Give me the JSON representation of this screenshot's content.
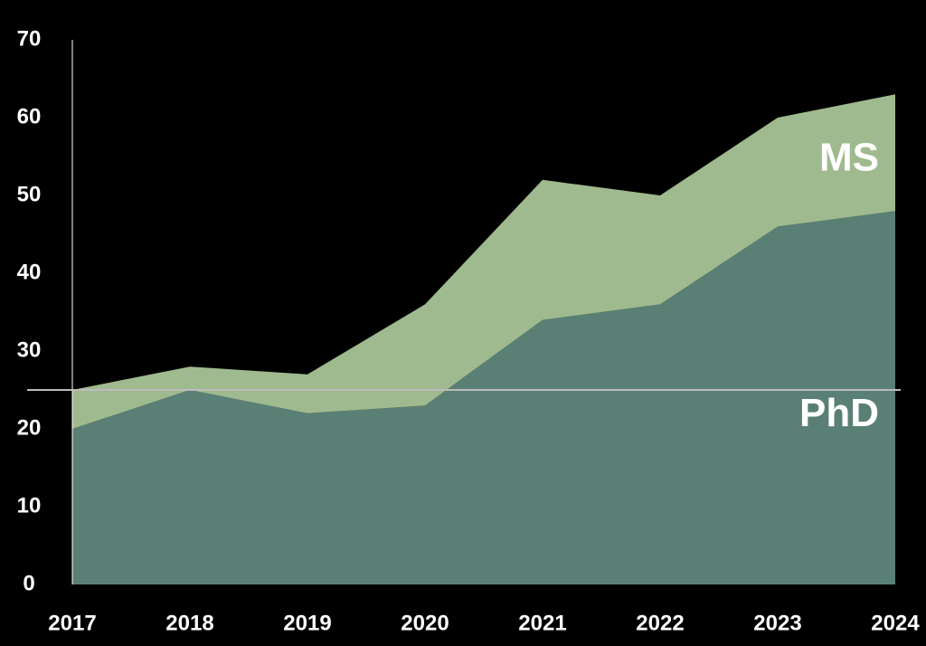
{
  "chart_data": {
    "type": "stacked-area",
    "x": [
      2017,
      2018,
      2019,
      2020,
      2021,
      2022,
      2023,
      2024
    ],
    "series": [
      {
        "name": "PhD",
        "color": "#5a8076",
        "values": [
          20,
          25,
          22,
          23,
          34,
          36,
          46,
          48
        ]
      },
      {
        "name": "MS",
        "color": "#9fba8e",
        "values": [
          5,
          3,
          5,
          13,
          18,
          14,
          14,
          15
        ]
      }
    ],
    "xlim": [
      2017,
      2024
    ],
    "ylim": [
      0,
      70
    ],
    "yticks": [
      0,
      10,
      20,
      30,
      40,
      50,
      60,
      70
    ],
    "reference_line": 25
  }
}
